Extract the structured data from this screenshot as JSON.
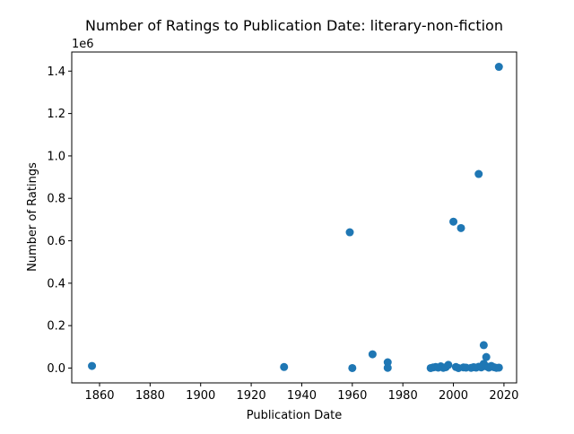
{
  "chart_data": {
    "type": "scatter",
    "title": "Number of Ratings to Publication Date: literary-non-fiction",
    "xlabel": "Publication Date",
    "ylabel": "Number of Ratings",
    "y_offset_label": "1e6",
    "xlim": [
      1849,
      2025
    ],
    "ylim": [
      -70000,
      1490000
    ],
    "x_ticks": [
      1860,
      1880,
      1900,
      1920,
      1940,
      1960,
      1980,
      2000,
      2020
    ],
    "x_tick_labels": [
      "1860",
      "1880",
      "1900",
      "1920",
      "1940",
      "1960",
      "1980",
      "2000",
      "2020"
    ],
    "y_ticks": [
      0,
      200000,
      400000,
      600000,
      800000,
      1000000,
      1200000,
      1400000
    ],
    "y_tick_labels": [
      "0.0",
      "0.2",
      "0.4",
      "0.6",
      "0.8",
      "1.0",
      "1.2",
      "1.4"
    ],
    "grid": false,
    "marker_color": "#1f77b4",
    "points": [
      {
        "x": 1857,
        "y": 10000
      },
      {
        "x": 1933,
        "y": 5000
      },
      {
        "x": 1959,
        "y": 640000
      },
      {
        "x": 1960,
        "y": 0
      },
      {
        "x": 1968,
        "y": 65000
      },
      {
        "x": 1974,
        "y": 27000
      },
      {
        "x": 1974,
        "y": 1000
      },
      {
        "x": 1991,
        "y": 0
      },
      {
        "x": 1992,
        "y": 3000
      },
      {
        "x": 1993,
        "y": 5000
      },
      {
        "x": 1994,
        "y": 2000
      },
      {
        "x": 1995,
        "y": 8000
      },
      {
        "x": 1996,
        "y": 1000
      },
      {
        "x": 1997,
        "y": 4000
      },
      {
        "x": 1998,
        "y": 15000
      },
      {
        "x": 2000,
        "y": 690000
      },
      {
        "x": 2001,
        "y": 5000
      },
      {
        "x": 2002,
        "y": 0
      },
      {
        "x": 2003,
        "y": 660000
      },
      {
        "x": 2004,
        "y": 3000
      },
      {
        "x": 2005,
        "y": 2000
      },
      {
        "x": 2007,
        "y": 1000
      },
      {
        "x": 2008,
        "y": 4000
      },
      {
        "x": 2009,
        "y": 2000
      },
      {
        "x": 2010,
        "y": 915000
      },
      {
        "x": 2010,
        "y": 6000
      },
      {
        "x": 2011,
        "y": 3000
      },
      {
        "x": 2012,
        "y": 108000
      },
      {
        "x": 2012,
        "y": 20000
      },
      {
        "x": 2013,
        "y": 52000
      },
      {
        "x": 2013,
        "y": 8000
      },
      {
        "x": 2014,
        "y": 2000
      },
      {
        "x": 2015,
        "y": 10000
      },
      {
        "x": 2016,
        "y": 4000
      },
      {
        "x": 2017,
        "y": 1000
      },
      {
        "x": 2018,
        "y": 1420000
      },
      {
        "x": 2018,
        "y": 2000
      }
    ]
  }
}
